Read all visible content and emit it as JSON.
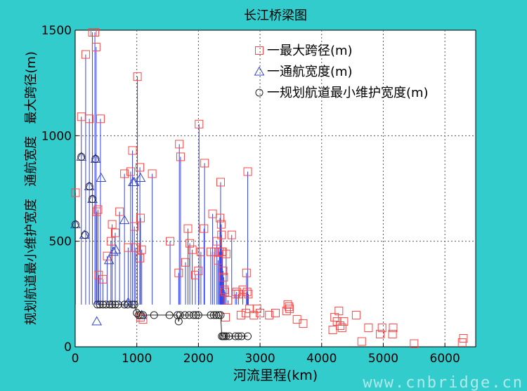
{
  "chart_data": {
    "type": "scatter",
    "title": "长江桥梁图",
    "xlabel": "河流里程(km)",
    "ylabel": "规划航道最小维护宽度   通航宽度   最大跨径(m)",
    "xlim": [
      0,
      6500
    ],
    "ylim": [
      0,
      1500
    ],
    "xticks": [
      0,
      1000,
      2000,
      3000,
      4000,
      5000,
      6000
    ],
    "yticks": [
      0,
      500,
      1000,
      1500
    ],
    "grid": true,
    "legend_position": "top-right",
    "series": [
      {
        "name": "一最大跨径(m)",
        "marker": "square",
        "color": "#ff4444",
        "points": [
          [
            5,
            730
          ],
          [
            100,
            1090
          ],
          [
            170,
            1385
          ],
          [
            230,
            1080
          ],
          [
            280,
            1490
          ],
          [
            320,
            1490
          ],
          [
            340,
            1420
          ],
          [
            350,
            640
          ],
          [
            370,
            650
          ],
          [
            380,
            340
          ],
          [
            410,
            1080
          ],
          [
            450,
            320
          ],
          [
            520,
            430
          ],
          [
            580,
            500
          ],
          [
            600,
            580
          ],
          [
            650,
            540
          ],
          [
            720,
            640
          ],
          [
            800,
            820
          ],
          [
            860,
            470
          ],
          [
            900,
            830
          ],
          [
            930,
            930
          ],
          [
            960,
            570
          ],
          [
            980,
            470
          ],
          [
            1010,
            1280
          ],
          [
            1050,
            850
          ],
          [
            1060,
            610
          ],
          [
            1080,
            460
          ],
          [
            1050,
            420
          ],
          [
            1060,
            140
          ],
          [
            1100,
            130
          ],
          [
            1250,
            820
          ],
          [
            1540,
            500
          ],
          [
            1680,
            350
          ],
          [
            1690,
            960
          ],
          [
            1710,
            900
          ],
          [
            1790,
            400
          ],
          [
            1830,
            560
          ],
          [
            1860,
            490
          ],
          [
            1900,
            460
          ],
          [
            1950,
            340
          ],
          [
            2000,
            360
          ],
          [
            2010,
            1055
          ],
          [
            2040,
            450
          ],
          [
            2090,
            560
          ],
          [
            2100,
            870
          ],
          [
            2200,
            450
          ],
          [
            2230,
            630
          ],
          [
            2260,
            450
          ],
          [
            2300,
            500
          ],
          [
            2320,
            410
          ],
          [
            2340,
            450
          ],
          [
            2350,
            610
          ],
          [
            2360,
            780
          ],
          [
            2370,
            580
          ],
          [
            2375,
            530
          ],
          [
            2380,
            450
          ],
          [
            2390,
            450
          ],
          [
            2400,
            360
          ],
          [
            2410,
            330
          ],
          [
            2420,
            270
          ],
          [
            2430,
            260
          ],
          [
            2440,
            140
          ],
          [
            2450,
            440
          ],
          [
            2480,
            220
          ],
          [
            2540,
            530
          ],
          [
            2600,
            250
          ],
          [
            2620,
            260
          ],
          [
            2650,
            250
          ],
          [
            2690,
            150
          ],
          [
            2720,
            270
          ],
          [
            2770,
            160
          ],
          [
            2780,
            350
          ],
          [
            2790,
            260
          ],
          [
            2800,
            830
          ],
          [
            2810,
            250
          ],
          [
            2830,
            180
          ],
          [
            2900,
            150
          ],
          [
            2950,
            180
          ],
          [
            3000,
            160
          ],
          [
            3150,
            150
          ],
          [
            3250,
            160
          ],
          [
            3430,
            170
          ],
          [
            3450,
            200
          ],
          [
            3470,
            190
          ],
          [
            3480,
            180
          ],
          [
            3600,
            130
          ],
          [
            3700,
            110
          ],
          [
            4180,
            80
          ],
          [
            4210,
            140
          ],
          [
            4250,
            120
          ],
          [
            4280,
            170
          ],
          [
            4300,
            100
          ],
          [
            4330,
            90
          ],
          [
            4360,
            120
          ],
          [
            4560,
            150
          ],
          [
            4650,
            25
          ],
          [
            4760,
            90
          ],
          [
            4950,
            60
          ],
          [
            4980,
            90
          ],
          [
            5150,
            60
          ],
          [
            5160,
            90
          ],
          [
            5500,
            15
          ],
          [
            6280,
            20
          ],
          [
            6300,
            40
          ]
        ]
      },
      {
        "name": "一通航宽度(m)",
        "marker": "triangle",
        "color": "#3344cc",
        "points": [
          [
            5,
            580
          ],
          [
            100,
            900
          ],
          [
            150,
            530
          ],
          [
            230,
            760
          ],
          [
            280,
            700
          ],
          [
            330,
            890
          ],
          [
            350,
            120
          ],
          [
            420,
            800
          ],
          [
            550,
            410
          ],
          [
            620,
            450
          ],
          [
            660,
            460
          ],
          [
            800,
            600
          ],
          [
            860,
            210
          ],
          [
            940,
            780
          ],
          [
            960,
            780
          ],
          [
            1060,
            800
          ],
          [
            1080,
            150
          ]
        ]
      },
      {
        "name": "一规划航道最小维护宽度(m)",
        "marker": "circle",
        "color": "#222222",
        "points": [
          [
            5,
            580
          ],
          [
            100,
            900
          ],
          [
            160,
            530
          ],
          [
            230,
            760
          ],
          [
            280,
            700
          ],
          [
            330,
            890
          ],
          [
            360,
            200
          ],
          [
            400,
            200
          ],
          [
            450,
            200
          ],
          [
            500,
            200
          ],
          [
            560,
            200
          ],
          [
            600,
            200
          ],
          [
            650,
            200
          ],
          [
            700,
            200
          ],
          [
            800,
            200
          ],
          [
            850,
            200
          ],
          [
            930,
            200
          ],
          [
            960,
            200
          ],
          [
            1000,
            160
          ],
          [
            1030,
            150
          ],
          [
            1060,
            150
          ],
          [
            1100,
            150
          ],
          [
            1280,
            150
          ],
          [
            1530,
            150
          ],
          [
            1660,
            150
          ],
          [
            1680,
            120
          ],
          [
            1700,
            150
          ],
          [
            1780,
            150
          ],
          [
            1850,
            150
          ],
          [
            1920,
            150
          ],
          [
            1960,
            150
          ],
          [
            2000,
            150
          ],
          [
            2200,
            150
          ],
          [
            2250,
            150
          ],
          [
            2290,
            150
          ],
          [
            2330,
            150
          ],
          [
            2360,
            150
          ],
          [
            2380,
            50
          ],
          [
            2400,
            50
          ],
          [
            2420,
            50
          ],
          [
            2450,
            50
          ],
          [
            2500,
            50
          ],
          [
            2600,
            50
          ],
          [
            2650,
            50
          ],
          [
            2700,
            50
          ],
          [
            2800,
            50
          ]
        ]
      }
    ]
  },
  "watermark": "www.cnbridge.cn"
}
